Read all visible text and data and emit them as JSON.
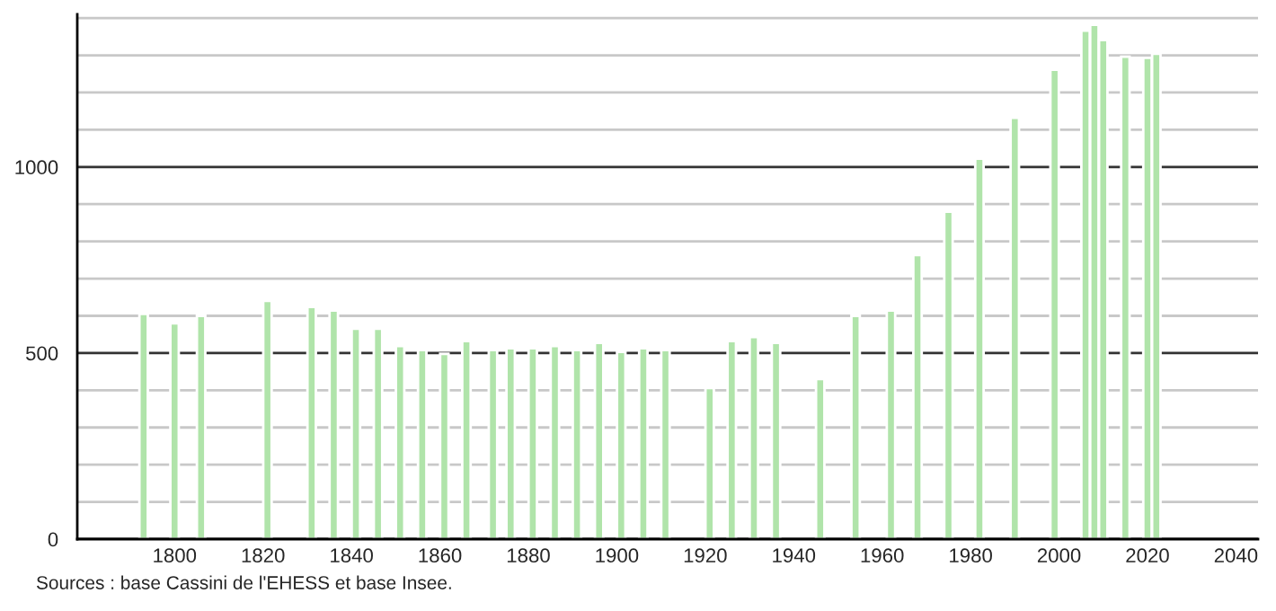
{
  "chart_data": {
    "type": "bar",
    "color": "#b0e4aa",
    "x": [
      1793,
      1800,
      1806,
      1821,
      1831,
      1836,
      1841,
      1846,
      1851,
      1856,
      1861,
      1866,
      1872,
      1876,
      1881,
      1886,
      1891,
      1896,
      1901,
      1906,
      1911,
      1921,
      1926,
      1931,
      1936,
      1946,
      1954,
      1962,
      1968,
      1975,
      1982,
      1990,
      1999,
      2006,
      2008,
      2010,
      2015,
      2020,
      2022
    ],
    "values": [
      605,
      580,
      600,
      640,
      624,
      614,
      565,
      565,
      519,
      508,
      498,
      532,
      508,
      513,
      513,
      519,
      508,
      527,
      503,
      513,
      508,
      406,
      532,
      543,
      527,
      430,
      600,
      614,
      763,
      880,
      1022,
      1132,
      1261,
      1366,
      1382,
      1341,
      1296,
      1293,
      1304
    ],
    "xlim": [
      1778,
      2045
    ],
    "xticks": [
      1800,
      1820,
      1840,
      1860,
      1880,
      1900,
      1920,
      1940,
      1960,
      1980,
      2000,
      2020,
      2040
    ],
    "ylim": [
      0,
      1410
    ],
    "yticks": [
      0,
      {
        "value": 100,
        "label": null
      },
      {
        "value": 200,
        "label": null
      },
      {
        "value": 300,
        "label": null
      },
      {
        "value": 400,
        "label": null
      },
      500,
      {
        "value": 600,
        "label": null
      },
      {
        "value": 700,
        "label": null
      },
      {
        "value": 800,
        "label": null
      },
      {
        "value": 900,
        "label": null
      },
      1000,
      {
        "value": 1100,
        "label": null
      },
      {
        "value": 1200,
        "label": null
      },
      {
        "value": 1300,
        "label": null
      },
      {
        "value": 1400,
        "label": null
      }
    ],
    "grid": "y",
    "annotations": [
      "Sources : base Cassini de l'EHESS et base Insee."
    ]
  }
}
